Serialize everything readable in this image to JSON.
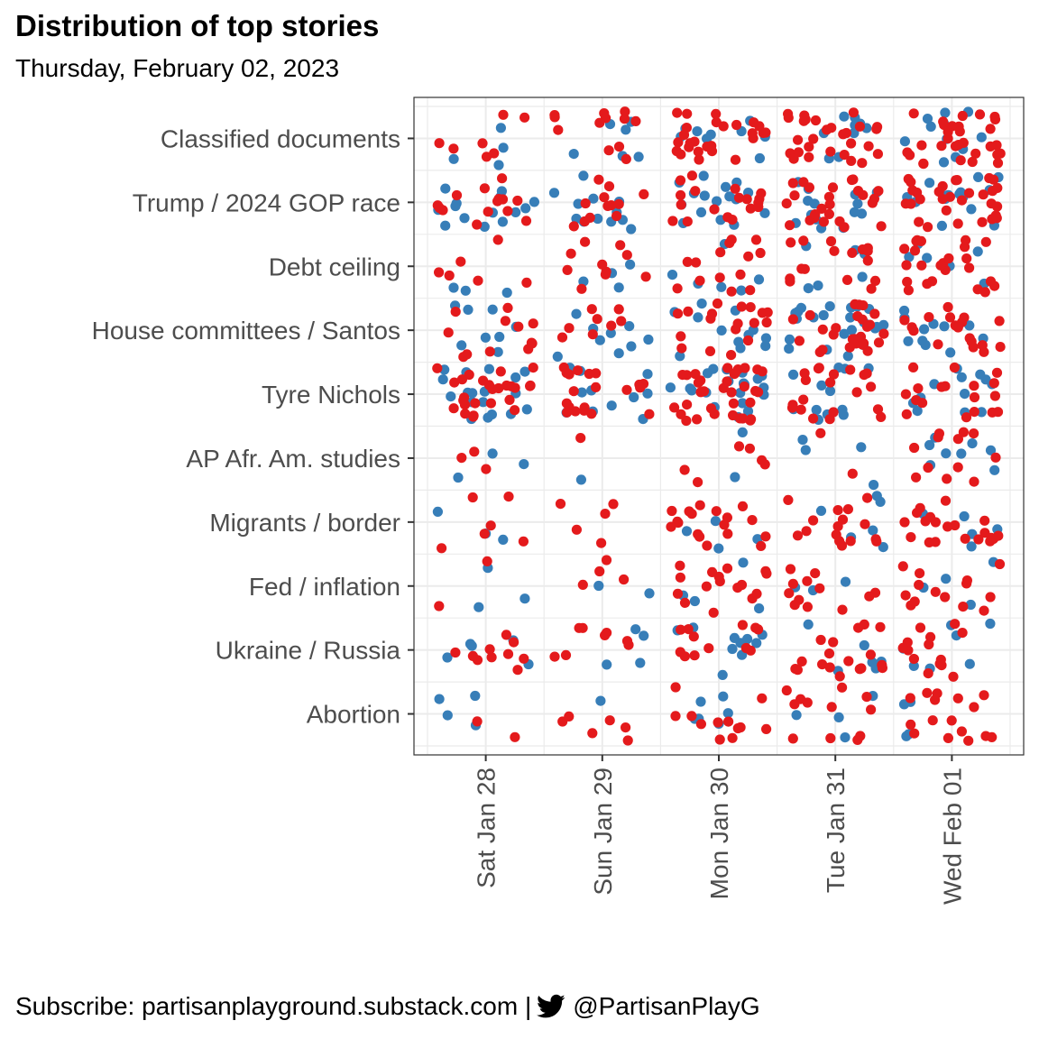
{
  "title": "Distribution of top stories",
  "subtitle": "Thursday, February 02, 2023",
  "footer": {
    "subscribe_text": "Subscribe: partisanplayground.substack.com |",
    "twitter_icon": "twitter-bird-icon",
    "handle": "@PartisanPlayG"
  },
  "colors": {
    "blue": "#377EB8",
    "red": "#E41A1C",
    "panel_border": "#333333",
    "grid": "#ebebeb",
    "axis_text": "#4d4d4d"
  },
  "chart_data": {
    "type": "scatter",
    "title": "Distribution of top stories",
    "subtitle": "Thursday, February 02, 2023",
    "x_categories": [
      "Sat Jan 28",
      "Sun Jan 29",
      "Mon Jan 30",
      "Tue Jan 31",
      "Wed Feb 01"
    ],
    "y_categories": [
      "Classified documents",
      "Trump / 2024 GOP race",
      "Debt ceiling",
      "House committees / Santos",
      "Tyre Nichols",
      "AP Afr. Am. studies",
      "Migrants / border",
      "Fed / inflation",
      "Ukraine / Russia",
      "Abortion"
    ],
    "jitter": true,
    "grid": true,
    "legend": "none",
    "series": [
      {
        "color": "#377EB8",
        "counts": [
          [
            4,
            6,
            9,
            9,
            11
          ],
          [
            14,
            12,
            16,
            14,
            15
          ],
          [
            3,
            4,
            6,
            6,
            6
          ],
          [
            8,
            9,
            12,
            22,
            11
          ],
          [
            18,
            12,
            20,
            12,
            12
          ],
          [
            3,
            1,
            2,
            4,
            8
          ],
          [
            3,
            0,
            4,
            6,
            5
          ],
          [
            3,
            2,
            4,
            3,
            4
          ],
          [
            5,
            4,
            10,
            6,
            7
          ],
          [
            4,
            1,
            6,
            4,
            4
          ]
        ]
      },
      {
        "color": "#E41A1C",
        "counts": [
          [
            7,
            12,
            26,
            28,
            30
          ],
          [
            14,
            12,
            18,
            26,
            30
          ],
          [
            6,
            10,
            14,
            16,
            24
          ],
          [
            12,
            8,
            18,
            26,
            18
          ],
          [
            26,
            20,
            34,
            20,
            18
          ],
          [
            3,
            1,
            6,
            2,
            12
          ],
          [
            6,
            5,
            18,
            16,
            20
          ],
          [
            2,
            4,
            16,
            12,
            14
          ],
          [
            10,
            8,
            12,
            18,
            14
          ],
          [
            2,
            6,
            12,
            12,
            16
          ]
        ]
      }
    ]
  }
}
